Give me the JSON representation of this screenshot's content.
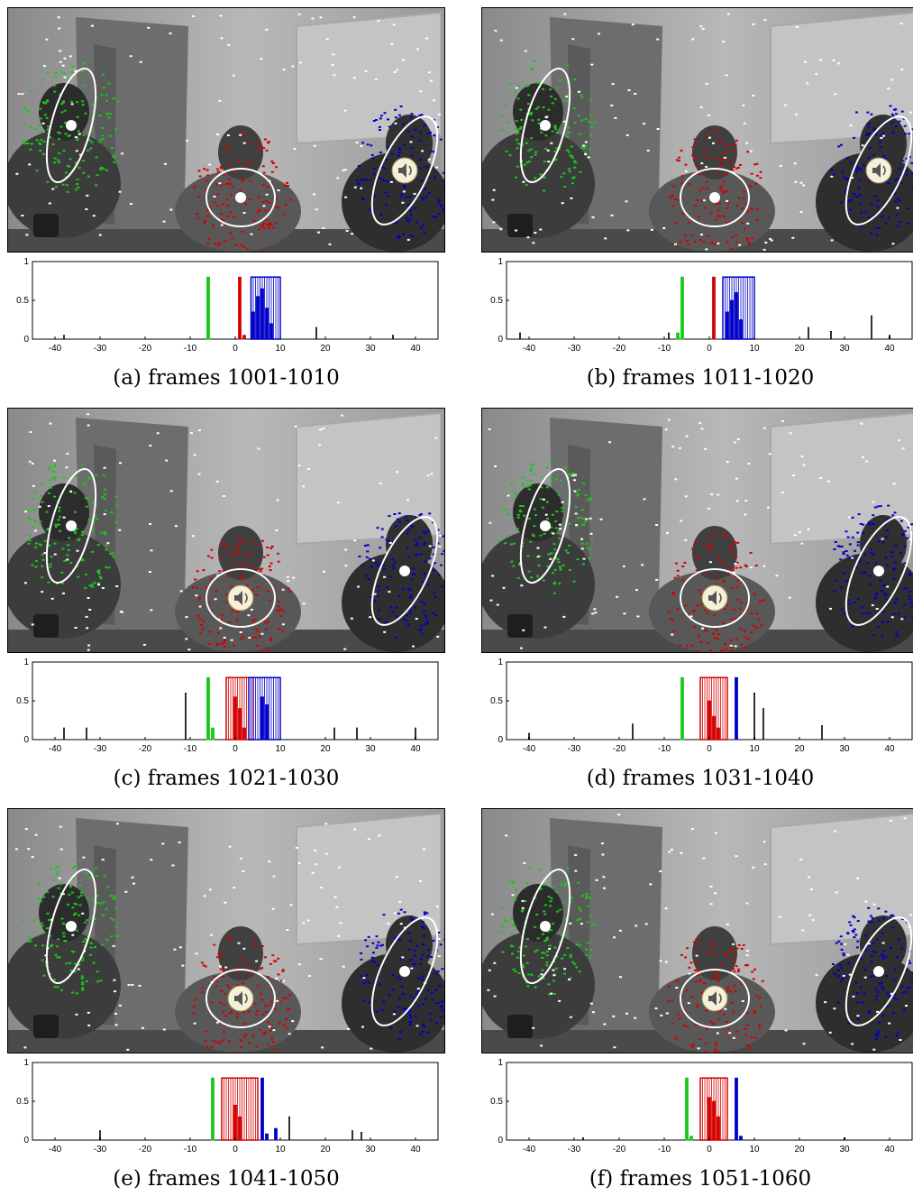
{
  "colors": {
    "green": "#19c819",
    "red": "#d40000",
    "blue": "#0000c8",
    "white": "#ffffff",
    "axis": "#000000"
  },
  "icons": [
    "speaker-icon"
  ],
  "axis": {
    "x_ticks": [
      "-40",
      "-30",
      "-20",
      "-10",
      "0",
      "10",
      "20",
      "30",
      "40"
    ],
    "y_ticks": [
      "0",
      "0.5",
      "1"
    ]
  },
  "panels": [
    {
      "caption": "(a) frames 1001-1010",
      "speaker": "blue",
      "chart_data": {
        "type": "bar",
        "xlim": [
          -45,
          45
        ],
        "ylim": [
          0,
          1
        ],
        "outline_boxes": [
          {
            "color": "blue",
            "x0": 3.5,
            "x1": 10,
            "y": 0.8
          }
        ],
        "bars": [
          {
            "x": -6,
            "y": 0.8,
            "color": "green"
          },
          {
            "x": 1,
            "y": 0.8,
            "color": "red"
          },
          {
            "x": 2,
            "y": 0.05,
            "color": "red"
          },
          {
            "x": 4,
            "y": 0.35,
            "color": "blue"
          },
          {
            "x": 5,
            "y": 0.55,
            "color": "blue"
          },
          {
            "x": 6,
            "y": 0.65,
            "color": "blue"
          },
          {
            "x": 7,
            "y": 0.4,
            "color": "blue"
          },
          {
            "x": 8,
            "y": 0.2,
            "color": "blue"
          },
          {
            "x": 18,
            "y": 0.15,
            "color": "black"
          },
          {
            "x": -38,
            "y": 0.05,
            "color": "black"
          },
          {
            "x": 35,
            "y": 0.05,
            "color": "black"
          }
        ]
      }
    },
    {
      "caption": "(b) frames 1011-1020",
      "speaker": "blue",
      "chart_data": {
        "type": "bar",
        "xlim": [
          -45,
          45
        ],
        "ylim": [
          0,
          1
        ],
        "outline_boxes": [
          {
            "color": "blue",
            "x0": 3,
            "x1": 10,
            "y": 0.8
          }
        ],
        "bars": [
          {
            "x": -6,
            "y": 0.8,
            "color": "green"
          },
          {
            "x": -7,
            "y": 0.08,
            "color": "green"
          },
          {
            "x": 1,
            "y": 0.8,
            "color": "red"
          },
          {
            "x": 4,
            "y": 0.35,
            "color": "blue"
          },
          {
            "x": 5,
            "y": 0.5,
            "color": "blue"
          },
          {
            "x": 6,
            "y": 0.6,
            "color": "blue"
          },
          {
            "x": 7,
            "y": 0.25,
            "color": "blue"
          },
          {
            "x": 36,
            "y": 0.3,
            "color": "black"
          },
          {
            "x": -42,
            "y": 0.08,
            "color": "black"
          },
          {
            "x": -9,
            "y": 0.08,
            "color": "black"
          },
          {
            "x": 22,
            "y": 0.15,
            "color": "black"
          },
          {
            "x": 27,
            "y": 0.1,
            "color": "black"
          },
          {
            "x": 40,
            "y": 0.05,
            "color": "black"
          }
        ]
      }
    },
    {
      "caption": "(c) frames 1021-1030",
      "speaker": "red",
      "chart_data": {
        "type": "bar",
        "xlim": [
          -45,
          45
        ],
        "ylim": [
          0,
          1
        ],
        "outline_boxes": [
          {
            "color": "red",
            "x0": -2,
            "x1": 4,
            "y": 0.8
          },
          {
            "color": "blue",
            "x0": 3,
            "x1": 10,
            "y": 0.8
          }
        ],
        "bars": [
          {
            "x": -6,
            "y": 0.8,
            "color": "green"
          },
          {
            "x": -5,
            "y": 0.15,
            "color": "green"
          },
          {
            "x": 0,
            "y": 0.55,
            "color": "red"
          },
          {
            "x": 1,
            "y": 0.4,
            "color": "red"
          },
          {
            "x": 2,
            "y": 0.15,
            "color": "red"
          },
          {
            "x": 6,
            "y": 0.55,
            "color": "blue"
          },
          {
            "x": 7,
            "y": 0.45,
            "color": "blue"
          },
          {
            "x": -11,
            "y": 0.6,
            "color": "black"
          },
          {
            "x": -38,
            "y": 0.15,
            "color": "black"
          },
          {
            "x": -33,
            "y": 0.15,
            "color": "black"
          },
          {
            "x": 22,
            "y": 0.15,
            "color": "black"
          },
          {
            "x": 27,
            "y": 0.15,
            "color": "black"
          },
          {
            "x": 40,
            "y": 0.15,
            "color": "black"
          }
        ]
      }
    },
    {
      "caption": "(d) frames 1031-1040",
      "speaker": "red",
      "chart_data": {
        "type": "bar",
        "xlim": [
          -45,
          45
        ],
        "ylim": [
          0,
          1
        ],
        "outline_boxes": [
          {
            "color": "red",
            "x0": -2,
            "x1": 4,
            "y": 0.8
          }
        ],
        "bars": [
          {
            "x": -6,
            "y": 0.8,
            "color": "green"
          },
          {
            "x": 0,
            "y": 0.5,
            "color": "red"
          },
          {
            "x": 1,
            "y": 0.3,
            "color": "red"
          },
          {
            "x": 2,
            "y": 0.15,
            "color": "red"
          },
          {
            "x": 6,
            "y": 0.8,
            "color": "blue"
          },
          {
            "x": 10,
            "y": 0.6,
            "color": "black"
          },
          {
            "x": 12,
            "y": 0.4,
            "color": "black"
          },
          {
            "x": -17,
            "y": 0.2,
            "color": "black"
          },
          {
            "x": -40,
            "y": 0.08,
            "color": "black"
          },
          {
            "x": 25,
            "y": 0.18,
            "color": "black"
          }
        ]
      }
    },
    {
      "caption": "(e) frames 1041-1050",
      "speaker": "red",
      "chart_data": {
        "type": "bar",
        "xlim": [
          -45,
          45
        ],
        "ylim": [
          0,
          1
        ],
        "outline_boxes": [
          {
            "color": "red",
            "x0": -3,
            "x1": 5,
            "y": 0.8
          }
        ],
        "bars": [
          {
            "x": -5,
            "y": 0.8,
            "color": "green"
          },
          {
            "x": 0,
            "y": 0.45,
            "color": "red"
          },
          {
            "x": 1,
            "y": 0.3,
            "color": "red"
          },
          {
            "x": 6,
            "y": 0.8,
            "color": "blue"
          },
          {
            "x": 7,
            "y": 0.08,
            "color": "blue"
          },
          {
            "x": 9,
            "y": 0.15,
            "color": "blue"
          },
          {
            "x": -30,
            "y": 0.12,
            "color": "black"
          },
          {
            "x": 26,
            "y": 0.12,
            "color": "black"
          },
          {
            "x": 28,
            "y": 0.1,
            "color": "black"
          },
          {
            "x": 12,
            "y": 0.3,
            "color": "black"
          }
        ]
      }
    },
    {
      "caption": "(f) frames 1051-1060",
      "speaker": "red",
      "chart_data": {
        "type": "bar",
        "xlim": [
          -45,
          45
        ],
        "ylim": [
          0,
          1
        ],
        "outline_boxes": [
          {
            "color": "red",
            "x0": -2,
            "x1": 4,
            "y": 0.8
          }
        ],
        "bars": [
          {
            "x": -5,
            "y": 0.8,
            "color": "green"
          },
          {
            "x": -4,
            "y": 0.05,
            "color": "green"
          },
          {
            "x": 0,
            "y": 0.55,
            "color": "red"
          },
          {
            "x": 1,
            "y": 0.5,
            "color": "red"
          },
          {
            "x": 2,
            "y": 0.3,
            "color": "red"
          },
          {
            "x": 6,
            "y": 0.8,
            "color": "blue"
          },
          {
            "x": 7,
            "y": 0.05,
            "color": "blue"
          },
          {
            "x": -28,
            "y": 0.03,
            "color": "black"
          },
          {
            "x": 30,
            "y": 0.03,
            "color": "black"
          }
        ]
      }
    }
  ]
}
